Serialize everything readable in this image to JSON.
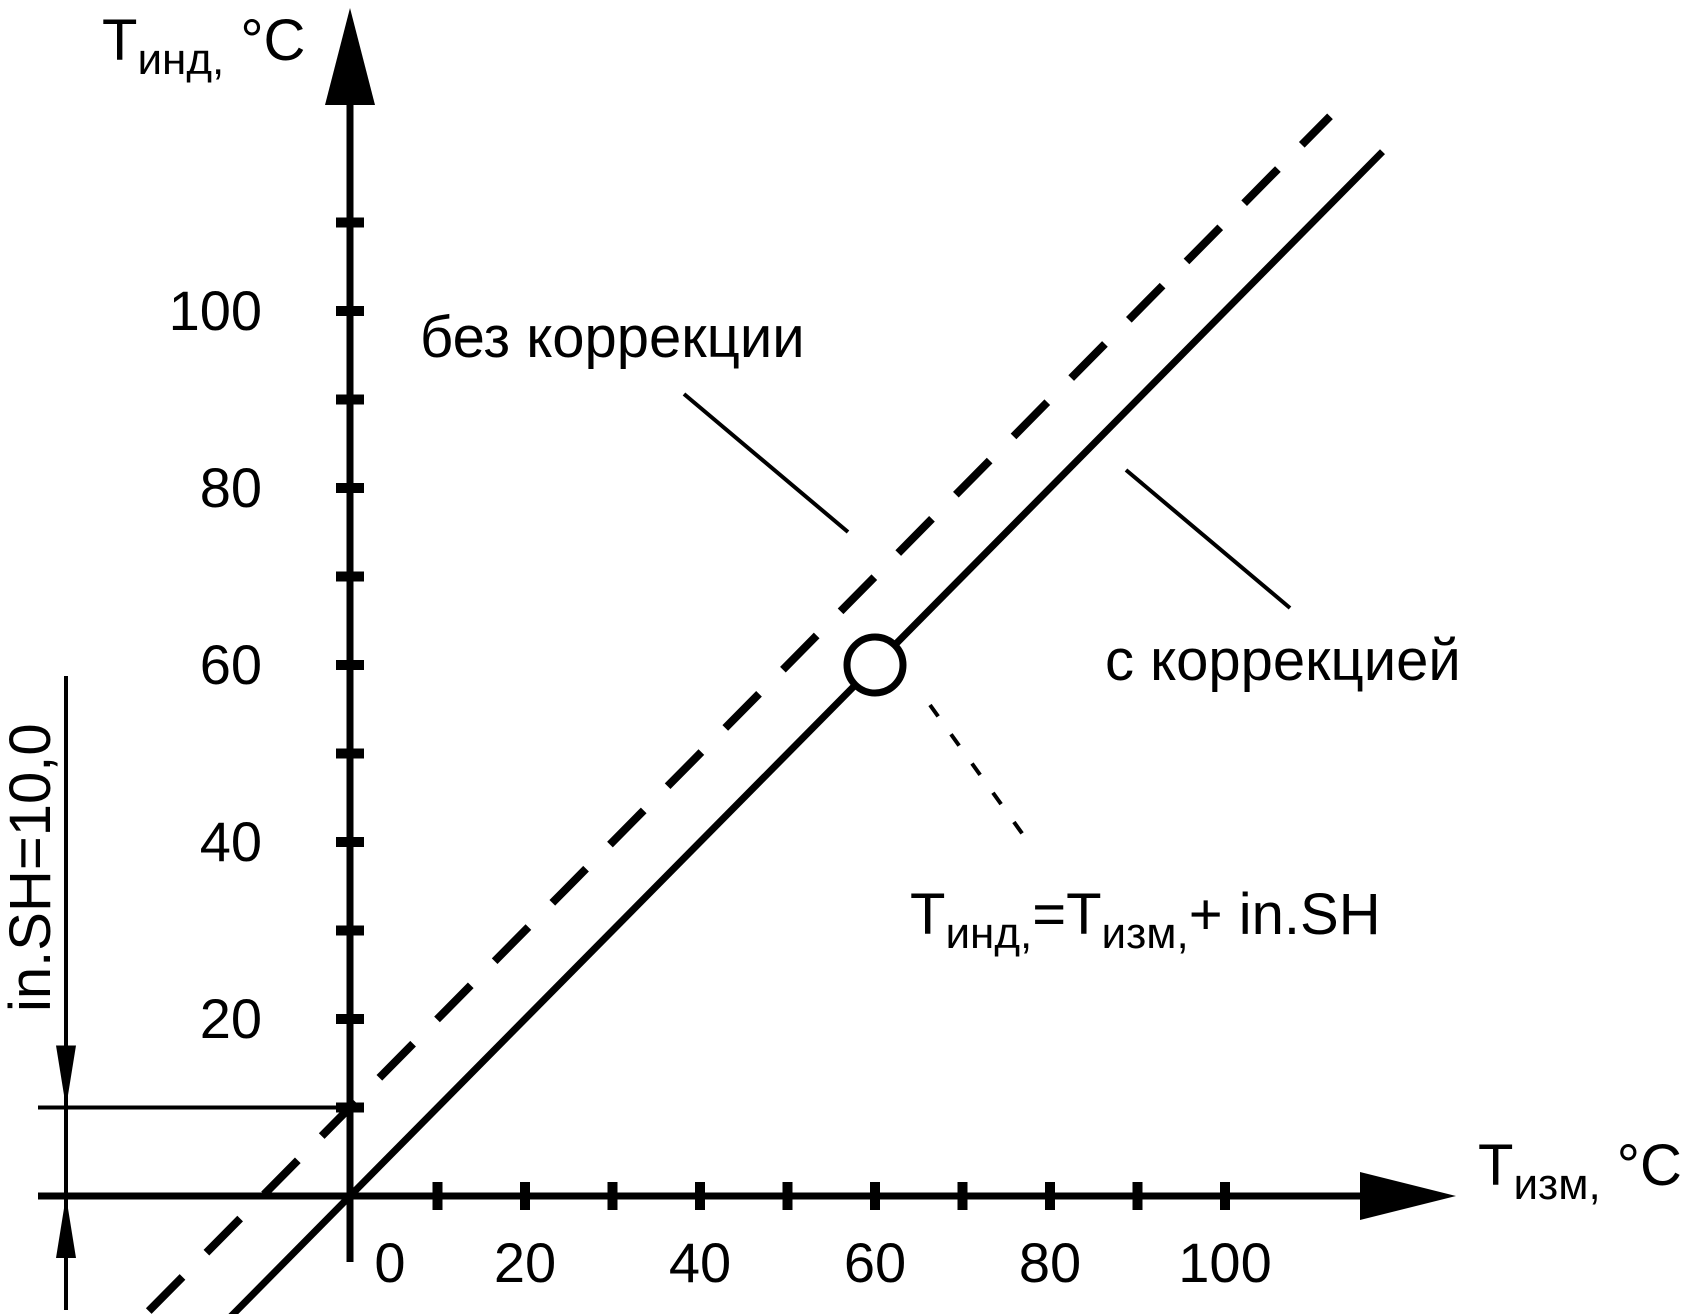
{
  "chart_data": {
    "type": "line",
    "xlabel": {
      "main": "T",
      "sub": "изм,",
      "unit": " °C"
    },
    "ylabel": {
      "main": "T",
      "sub": "инд,",
      "unit": " °C"
    },
    "x_ticks": [
      0,
      10,
      20,
      30,
      40,
      50,
      60,
      70,
      80,
      90,
      100
    ],
    "x_tick_labels": [
      "0",
      "20",
      "40",
      "60",
      "80",
      "100"
    ],
    "y_ticks": [
      10,
      20,
      30,
      40,
      50,
      60,
      70,
      80,
      90,
      100,
      110
    ],
    "y_tick_labels": [
      "20",
      "40",
      "60",
      "80",
      "100"
    ],
    "series": [
      {
        "name": "без коррекции",
        "style": "solid",
        "x": [
          -14,
          118
        ],
        "y": [
          -14,
          118
        ]
      },
      {
        "name": "с коррекцией",
        "style": "dashed",
        "x": [
          -23,
          112
        ],
        "y": [
          -13,
          122
        ]
      }
    ],
    "marker_point": {
      "x": 60,
      "y": 60
    },
    "formula": [
      {
        "main": "T",
        "sub": "инд,"
      },
      {
        "main": "=T",
        "sub": "изм,"
      },
      {
        "main": "+  in.SH",
        "sub": ""
      }
    ],
    "shift_label": "in.SH=10,0",
    "shift_value": 10
  }
}
